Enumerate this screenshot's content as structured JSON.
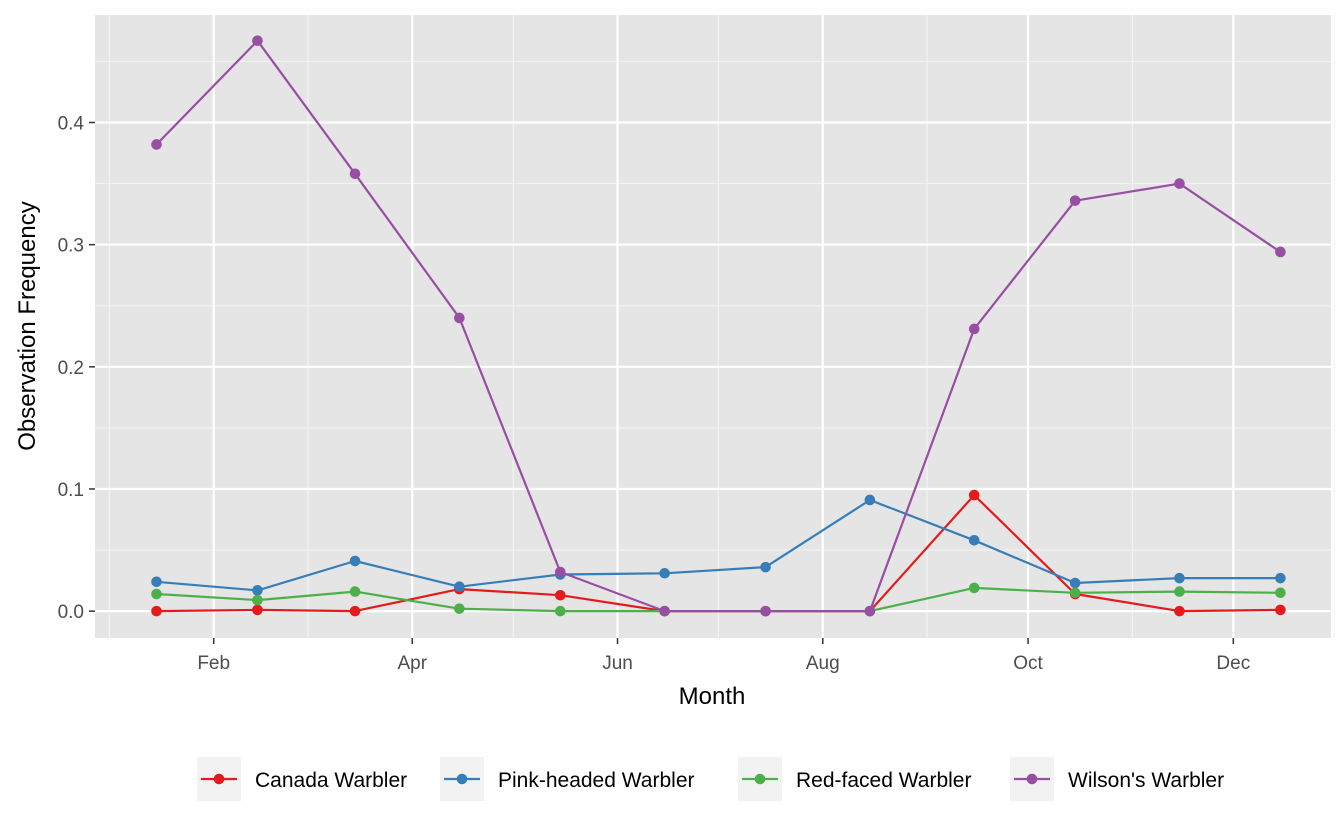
{
  "chart_data": {
    "type": "line",
    "title": "",
    "xlabel": "Month",
    "ylabel": "Observation Frequency",
    "x": [
      "Jan 15",
      "Feb 14",
      "Mar 15",
      "Apr 15",
      "May 15",
      "Jun 15",
      "Jul 15",
      "Aug 15",
      "Sep 15",
      "Oct 15",
      "Nov 15",
      "Dec 15"
    ],
    "x_ticks": [
      "Feb",
      "Apr",
      "Jun",
      "Aug",
      "Oct",
      "Dec"
    ],
    "y_ticks": [
      "0.0",
      "0.1",
      "0.2",
      "0.3",
      "0.4"
    ],
    "ylim": [
      -0.022,
      0.488
    ],
    "grid": true,
    "legend_position": "bottom",
    "series": [
      {
        "name": "Canada Warbler",
        "color": "#e41a1c",
        "values": [
          0.0,
          0.001,
          0.0,
          0.018,
          0.013,
          0.0,
          0.0,
          0.0,
          0.095,
          0.014,
          0.0,
          0.001
        ]
      },
      {
        "name": "Pink-headed Warbler",
        "color": "#377eb8",
        "values": [
          0.024,
          0.017,
          0.041,
          0.02,
          0.03,
          0.031,
          0.036,
          0.091,
          0.058,
          0.023,
          0.027,
          0.027
        ]
      },
      {
        "name": "Red-faced Warbler",
        "color": "#4daf4a",
        "values": [
          0.014,
          0.009,
          0.016,
          0.002,
          0.0,
          0.0,
          0.0,
          0.0,
          0.019,
          0.015,
          0.016,
          0.015
        ]
      },
      {
        "name": "Wilson's Warbler",
        "color": "#984ea3",
        "values": [
          0.382,
          0.467,
          0.358,
          0.24,
          0.032,
          0.0,
          0.0,
          0.0,
          0.231,
          0.336,
          0.35,
          0.294
        ]
      }
    ]
  }
}
